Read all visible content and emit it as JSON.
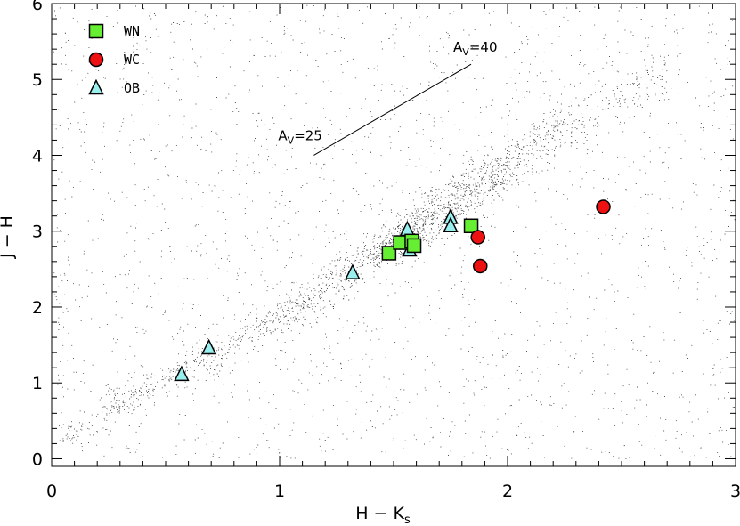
{
  "chart_data": {
    "type": "scatter",
    "xlabel": "H − K",
    "xlabel_sub": "s",
    "ylabel": "J − H",
    "xlim": [
      0,
      3
    ],
    "ylim": [
      -0.1,
      6
    ],
    "x_ticks": [
      0,
      1,
      2,
      3
    ],
    "y_ticks": [
      0,
      1,
      2,
      3,
      4,
      5,
      6
    ],
    "legend": {
      "placement": "top-left",
      "entries": [
        {
          "name": "WN",
          "marker": "square",
          "color": "#66ee33"
        },
        {
          "name": "WC",
          "marker": "circle",
          "color": "#ee1111"
        },
        {
          "name": "OB",
          "marker": "triangle",
          "color": "#99eeee"
        }
      ]
    },
    "series": [
      {
        "name": "WN",
        "marker": "square",
        "color": "#66ee33",
        "points": [
          [
            1.48,
            2.71
          ],
          [
            1.53,
            2.85
          ],
          [
            1.58,
            2.87
          ],
          [
            1.59,
            2.81
          ],
          [
            1.84,
            3.07
          ]
        ]
      },
      {
        "name": "WC",
        "marker": "circle",
        "color": "#ee1111",
        "points": [
          [
            1.87,
            2.92
          ],
          [
            1.88,
            2.54
          ],
          [
            2.42,
            3.32
          ]
        ]
      },
      {
        "name": "OB",
        "marker": "triangle",
        "color": "#99eeee",
        "points": [
          [
            0.57,
            1.11
          ],
          [
            0.69,
            1.46
          ],
          [
            1.32,
            2.45
          ],
          [
            1.56,
            3.02
          ],
          [
            1.57,
            2.75
          ],
          [
            1.75,
            3.18
          ],
          [
            1.75,
            3.07
          ]
        ]
      }
    ],
    "background_field": {
      "description_of_locus": "dense field-star sequence",
      "locus_points": [
        [
          0.1,
          0.3
        ],
        [
          0.3,
          0.75
        ],
        [
          0.6,
          1.2
        ],
        [
          1.0,
          1.85
        ],
        [
          1.4,
          2.65
        ],
        [
          1.8,
          3.45
        ],
        [
          2.2,
          4.25
        ],
        [
          2.6,
          5.0
        ]
      ]
    },
    "reddening_vector": {
      "start": [
        1.15,
        4.0
      ],
      "end": [
        1.84,
        5.2
      ],
      "start_label": "A",
      "start_label_sub": "V",
      "start_label_value": "=25",
      "end_label": "A",
      "end_label_sub": "V",
      "end_label_value": "=40"
    },
    "grid": false
  }
}
